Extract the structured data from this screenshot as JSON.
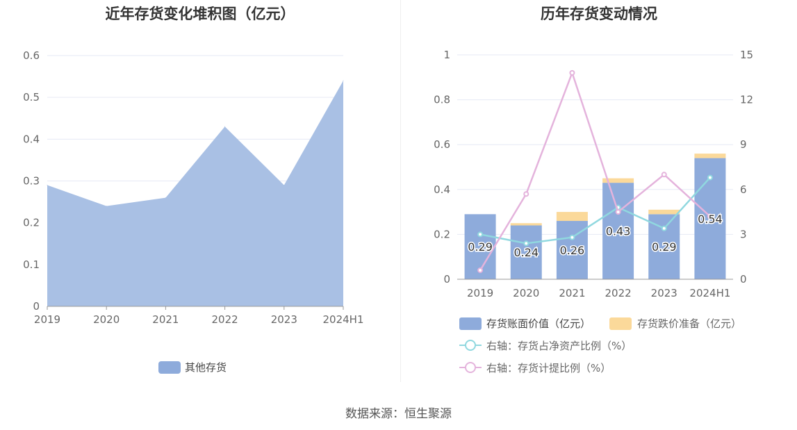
{
  "source": "数据来源：恒生聚源",
  "colors": {
    "area": "#a9c0e4",
    "bar_book": "#8eabdb",
    "bar_reserve": "#fbd99a",
    "line_net": "#90d8df",
    "line_provision": "#e4b3dc",
    "grid": "#e6e9f5"
  },
  "chart_data": [
    {
      "type": "area",
      "title": "近年存货变化堆积图（亿元）",
      "categories": [
        "2019",
        "2020",
        "2021",
        "2022",
        "2023",
        "2024H1"
      ],
      "series": [
        {
          "name": "其他存货",
          "values": [
            0.29,
            0.24,
            0.26,
            0.43,
            0.29,
            0.54
          ]
        }
      ],
      "y_ticks": [
        "0",
        "0.1",
        "0.2",
        "0.3",
        "0.4",
        "0.5",
        "0.6"
      ],
      "ylim": [
        0,
        0.6
      ],
      "grid": true,
      "legend_position": "bottom"
    },
    {
      "type": "bar",
      "title": "历年存货变动情况",
      "categories": [
        "2019",
        "2020",
        "2021",
        "2022",
        "2023",
        "2024H1"
      ],
      "series": [
        {
          "name": "存货账面价值（亿元）",
          "values": [
            0.29,
            0.24,
            0.26,
            0.43,
            0.29,
            0.54
          ],
          "labels": [
            "0.29",
            "0.24",
            "0.26",
            "0.43",
            "0.29",
            "0.54"
          ]
        },
        {
          "name": "存货跌价准备（亿元）",
          "values": [
            0.0,
            0.01,
            0.04,
            0.02,
            0.02,
            0.02
          ]
        },
        {
          "name": "右轴：存货占净资产比例（%）",
          "type": "line",
          "axis": "right",
          "values": [
            3.0,
            2.4,
            2.8,
            4.8,
            3.4,
            6.8
          ]
        },
        {
          "name": "右轴：存货计提比例（%）",
          "type": "line",
          "axis": "right",
          "values": [
            0.6,
            5.7,
            13.8,
            4.5,
            7.0,
            4.2
          ]
        }
      ],
      "y_ticks_left": [
        "0",
        "0.2",
        "0.4",
        "0.6",
        "0.8",
        "1"
      ],
      "y_ticks_right": [
        "0",
        "3",
        "6",
        "9",
        "12",
        "15"
      ],
      "ylim_left": [
        0,
        1
      ],
      "ylim_right": [
        0,
        15
      ],
      "grid": true,
      "legend_position": "bottom"
    }
  ]
}
